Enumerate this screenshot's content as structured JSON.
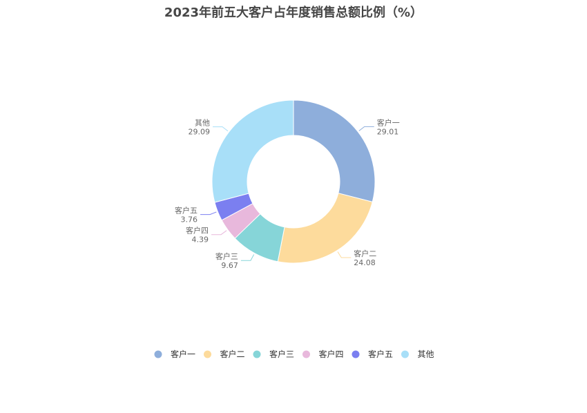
{
  "chart_data": {
    "type": "pie",
    "title": "2023年前五大客户占年度销售总额比例（%）",
    "categories": [
      "客户一",
      "客户二",
      "客户三",
      "客户四",
      "客户五",
      "其他"
    ],
    "values": [
      29.01,
      24.08,
      9.67,
      4.39,
      3.76,
      29.09
    ],
    "value_labels": [
      "29.01",
      "24.08",
      "9.67",
      "4.39",
      "3.76",
      "29.09"
    ],
    "colors": [
      "#8eaedb",
      "#fddb9c",
      "#86d5d8",
      "#e8b8dc",
      "#7b7ff0",
      "#a8dff8"
    ],
    "donut": true,
    "legend": "bottom"
  }
}
